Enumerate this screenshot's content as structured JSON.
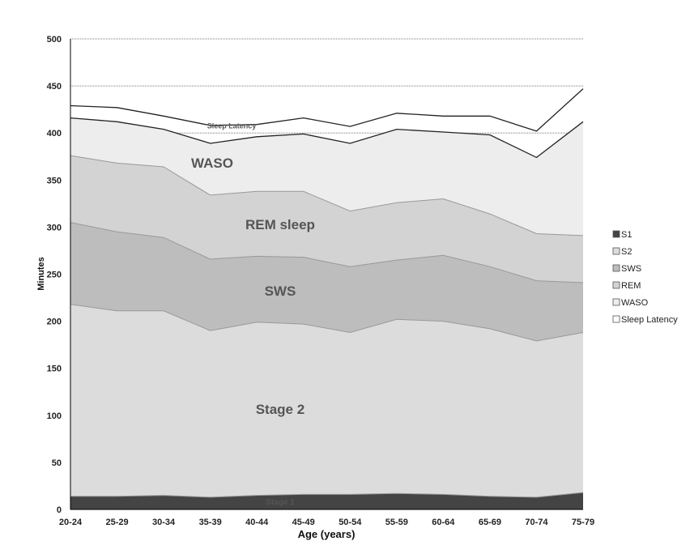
{
  "chart_data": {
    "type": "area",
    "stacked": true,
    "xlabel": "Age (years)",
    "ylabel": "Minutes",
    "ylim": [
      0,
      500
    ],
    "yticks": [
      0,
      50,
      100,
      150,
      200,
      250,
      300,
      350,
      400,
      450,
      500
    ],
    "grid": true,
    "legend": "right",
    "categories": [
      "20-24",
      "25-29",
      "30-34",
      "35-39",
      "40-44",
      "45-49",
      "50-54",
      "55-59",
      "60-64",
      "65-69",
      "70-74",
      "75-79"
    ],
    "series": [
      {
        "name": "S1",
        "color": "#444444",
        "values": [
          14,
          14,
          15,
          13,
          15,
          16,
          16,
          17,
          16,
          14,
          13,
          18
        ]
      },
      {
        "name": "S2",
        "color": "#dcdcdc",
        "values": [
          204,
          197,
          196,
          177,
          184,
          181,
          172,
          185,
          184,
          178,
          166,
          170
        ]
      },
      {
        "name": "SWS",
        "color": "#bdbdbd",
        "values": [
          87,
          84,
          78,
          76,
          70,
          71,
          70,
          63,
          70,
          66,
          64,
          53
        ]
      },
      {
        "name": "REM",
        "color": "#d3d3d3",
        "values": [
          71,
          73,
          75,
          68,
          69,
          70,
          59,
          61,
          60,
          56,
          50,
          50
        ]
      },
      {
        "name": "WASO",
        "color": "#ededed",
        "values": [
          40,
          44,
          40,
          55,
          58,
          61,
          72,
          78,
          71,
          84,
          81,
          121
        ]
      },
      {
        "name": "Sleep Latency",
        "color": "#ffffff",
        "values": [
          13,
          15,
          14,
          19,
          13,
          17,
          18,
          17,
          17,
          20,
          28,
          35
        ]
      }
    ],
    "annotations": [
      {
        "text": "Stage 1",
        "series": "S1"
      },
      {
        "text": "Stage 2",
        "series": "S2"
      },
      {
        "text": "SWS",
        "series": "SWS"
      },
      {
        "text": "REM sleep",
        "series": "REM"
      },
      {
        "text": "WASO",
        "series": "WASO"
      },
      {
        "text": "Sleep Latency",
        "series": "Sleep Latency"
      }
    ]
  }
}
